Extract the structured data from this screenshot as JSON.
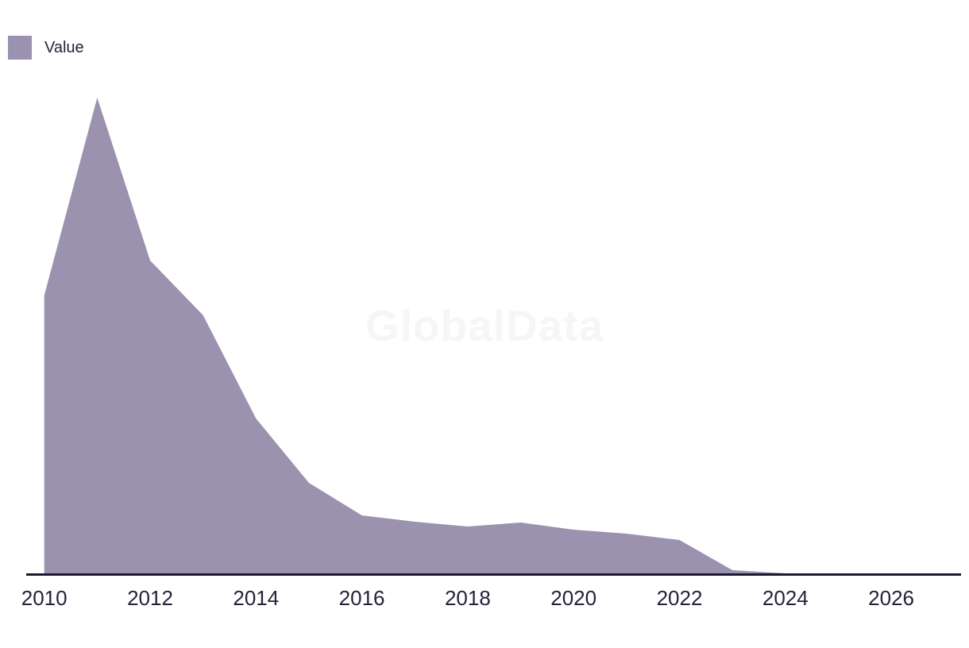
{
  "page": {
    "background": "#ffffff"
  },
  "legend": {
    "label": "Value",
    "swatch_color": "#9a92ae"
  },
  "watermark": {
    "text": "GlobalData",
    "color": "#f6f6f8"
  },
  "chart_data": {
    "type": "area",
    "title": "",
    "xlabel": "",
    "ylabel": "",
    "grid": false,
    "y_axis_visible": false,
    "legend_position": "top-left",
    "units": "relative (no y-axis scale shown in chart)",
    "x": [
      2010,
      2011,
      2012,
      2013,
      2014,
      2015,
      2016,
      2017,
      2018,
      2019,
      2020,
      2021,
      2022,
      2023,
      2024
    ],
    "series": [
      {
        "name": "Value",
        "color": "#9a92ae",
        "values": [
          350,
          599,
          394,
          325,
          195,
          114,
          73,
          65,
          59,
          64,
          55,
          50,
          42,
          4,
          0
        ]
      }
    ],
    "xlim": [
      2010,
      2027
    ],
    "ylim": [
      0,
      630
    ],
    "x_tick_labels": [
      "2010",
      "2012",
      "2014",
      "2016",
      "2018",
      "2020",
      "2022",
      "2024",
      "2026"
    ],
    "x_tick_years": [
      2010,
      2012,
      2014,
      2016,
      2018,
      2020,
      2022,
      2024,
      2026
    ],
    "axis_line_color": "#191b2e",
    "tick_label_color": "#232339"
  }
}
